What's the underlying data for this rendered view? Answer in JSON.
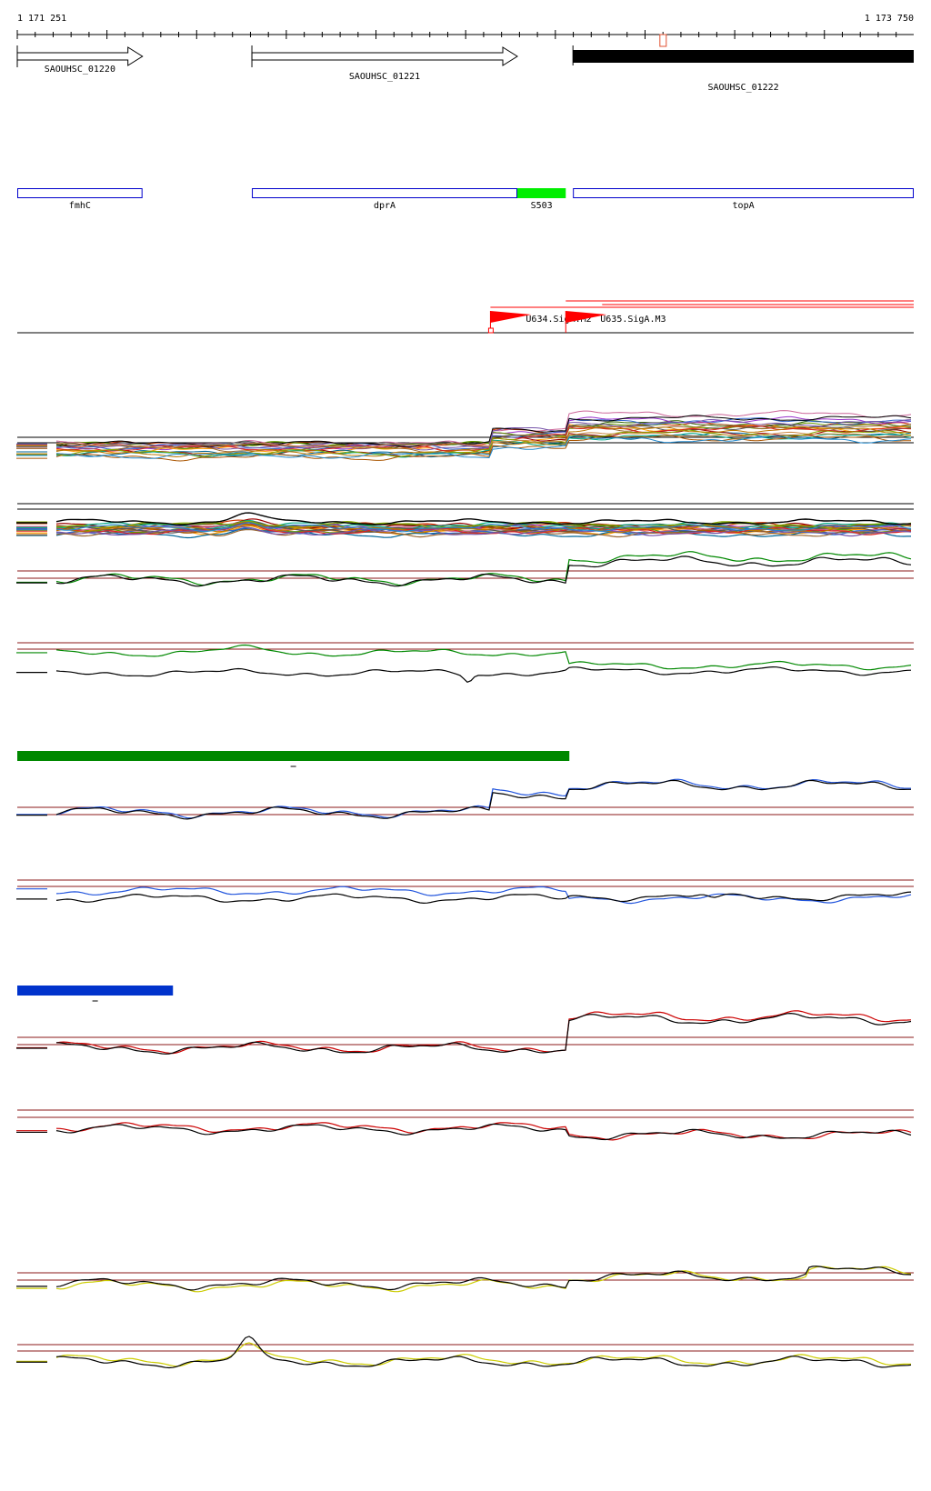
{
  "ruler": {
    "start_label": "1 171 251",
    "end_label": "1 173 750",
    "start": 1171251,
    "end": 1173750,
    "tick_step": 50
  },
  "genes": [
    {
      "id": "SAOUHSC_01220",
      "start": 1171251,
      "end": 1171600,
      "strand": "+",
      "style": "outline"
    },
    {
      "id": "SAOUHSC_01221",
      "start": 1171905,
      "end": 1172645,
      "strand": "+",
      "style": "outline"
    },
    {
      "id": "SAOUHSC_01222",
      "start": 1172800,
      "end": 1173750,
      "strand": "+",
      "style": "filled",
      "marker": 1173050
    }
  ],
  "features": [
    {
      "name": "fmhC",
      "start": 1171251,
      "end": 1171600,
      "color": "#0000cc",
      "style": "outline"
    },
    {
      "name": "dprA",
      "start": 1171905,
      "end": 1172645,
      "color": "#0000cc",
      "style": "outline"
    },
    {
      "name": "S503",
      "start": 1172645,
      "end": 1172780,
      "color": "#00ee00",
      "style": "filled"
    },
    {
      "name": "topA",
      "start": 1172800,
      "end": 1173750,
      "color": "#0000cc",
      "style": "outline"
    }
  ],
  "promoters": [
    {
      "name": "U634.SigA.M2",
      "position": 1172570,
      "color": "#ff0000"
    },
    {
      "name": "U635.SigA.M3",
      "position": 1172780,
      "color": "#ff0000"
    }
  ],
  "condition_bars": [
    {
      "color": "#008800",
      "start": 1171251,
      "end": 1172790
    },
    {
      "color": "#0033cc",
      "start": 1171251,
      "end": 1171685
    }
  ],
  "colors": {
    "threshold": "#8b1a1a",
    "reference": "#000000",
    "green": "#008800",
    "blue": "#2255dd",
    "red": "#cc0000",
    "yellow": "#cccc00"
  }
}
